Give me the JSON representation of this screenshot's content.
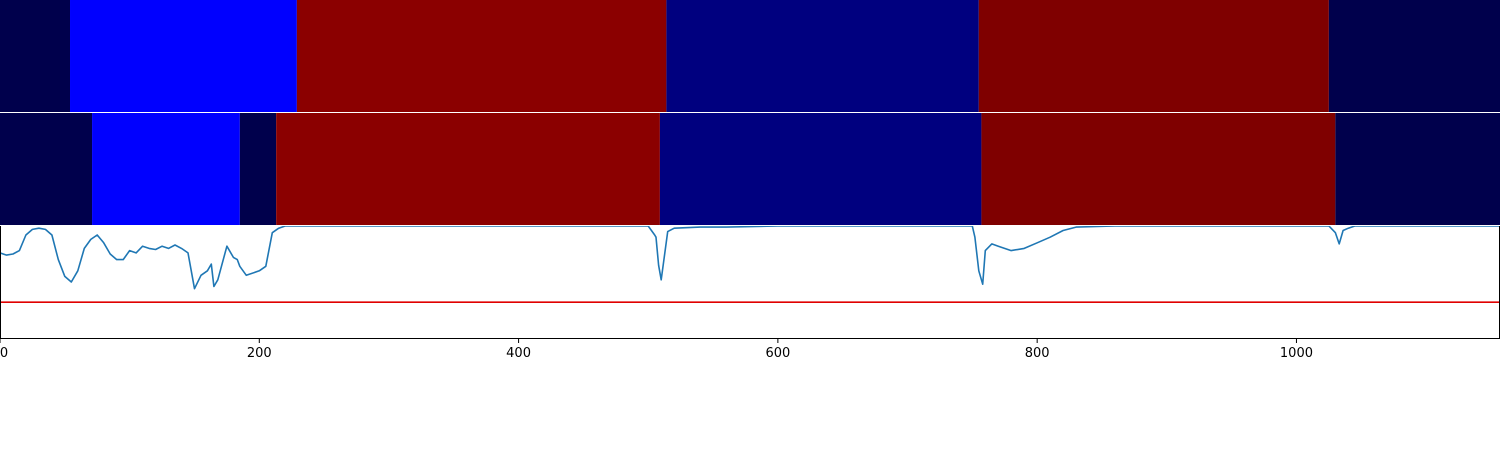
{
  "chart_data": {
    "type": "heatmap-with-line",
    "xlim": [
      0,
      1157
    ],
    "x_ticks": [
      {
        "value": 0,
        "label": "0"
      },
      {
        "value": 200,
        "label": "200"
      },
      {
        "value": 400,
        "label": "400"
      },
      {
        "value": 600,
        "label": "600"
      },
      {
        "value": 800,
        "label": "800"
      },
      {
        "value": 1000,
        "label": "1000"
      }
    ],
    "segment_rows": [
      {
        "segments": [
          {
            "start": 0,
            "end": 54,
            "color": "#00004c"
          },
          {
            "start": 54,
            "end": 229,
            "color": "#0000ff"
          },
          {
            "start": 229,
            "end": 514,
            "color": "#8b0000"
          },
          {
            "start": 514,
            "end": 755,
            "color": "#00007f"
          },
          {
            "start": 755,
            "end": 1025,
            "color": "#7f0000"
          },
          {
            "start": 1025,
            "end": 1157,
            "color": "#00004c"
          }
        ]
      },
      {
        "segments": [
          {
            "start": 0,
            "end": 71,
            "color": "#00004c"
          },
          {
            "start": 71,
            "end": 185,
            "color": "#0000ff"
          },
          {
            "start": 185,
            "end": 213,
            "color": "#00004c"
          },
          {
            "start": 213,
            "end": 509,
            "color": "#8b0000"
          },
          {
            "start": 509,
            "end": 757,
            "color": "#00007f"
          },
          {
            "start": 757,
            "end": 1030,
            "color": "#7f0000"
          },
          {
            "start": 1030,
            "end": 1157,
            "color": "#00004c"
          }
        ]
      }
    ],
    "line_panel": {
      "ylim": [
        0,
        1
      ],
      "threshold": 0.32,
      "threshold_color": "#e00000",
      "line_color": "#1f77b4",
      "series": {
        "x": [
          0,
          5,
          10,
          15,
          20,
          25,
          30,
          35,
          40,
          45,
          50,
          55,
          60,
          65,
          70,
          75,
          80,
          85,
          90,
          95,
          100,
          105,
          110,
          115,
          120,
          125,
          130,
          135,
          140,
          145,
          150,
          155,
          160,
          163,
          165,
          168,
          175,
          180,
          183,
          185,
          190,
          200,
          205,
          210,
          215,
          220,
          225,
          230,
          235,
          240,
          260,
          300,
          400,
          490,
          500,
          505,
          506,
          508,
          510,
          515,
          520,
          540,
          560,
          600,
          700,
          750,
          752,
          755,
          758,
          760,
          765,
          770,
          780,
          790,
          800,
          810,
          820,
          830,
          860,
          900,
          1000,
          1025,
          1030,
          1033,
          1036,
          1040,
          1045,
          1050,
          1157
        ],
        "y": [
          0.76,
          0.74,
          0.75,
          0.78,
          0.92,
          0.97,
          0.98,
          0.97,
          0.92,
          0.7,
          0.55,
          0.5,
          0.6,
          0.8,
          0.88,
          0.92,
          0.85,
          0.75,
          0.7,
          0.7,
          0.78,
          0.76,
          0.82,
          0.8,
          0.79,
          0.82,
          0.8,
          0.83,
          0.8,
          0.76,
          0.44,
          0.56,
          0.6,
          0.66,
          0.46,
          0.52,
          0.82,
          0.72,
          0.7,
          0.64,
          0.56,
          0.6,
          0.64,
          0.94,
          0.98,
          1.0,
          1.0,
          1.0,
          1.0,
          1.0,
          1.0,
          1.0,
          1.0,
          1.0,
          1.0,
          0.92,
          0.9,
          0.65,
          0.52,
          0.95,
          0.98,
          0.99,
          0.99,
          1.0,
          1.0,
          1.0,
          0.9,
          0.6,
          0.48,
          0.78,
          0.84,
          0.82,
          0.78,
          0.8,
          0.85,
          0.9,
          0.96,
          0.99,
          1.0,
          1.0,
          1.0,
          1.0,
          0.94,
          0.84,
          0.96,
          0.98,
          1.0,
          1.0,
          1.0
        ]
      }
    }
  }
}
